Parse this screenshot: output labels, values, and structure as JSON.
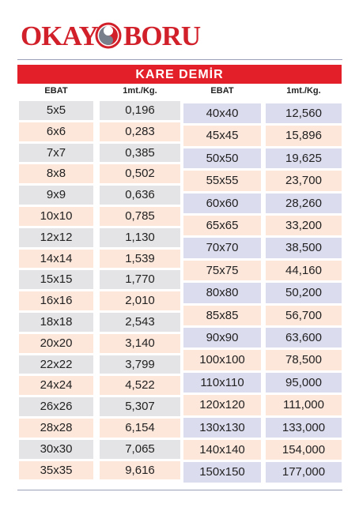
{
  "header": {
    "logo_left": "OKAY",
    "logo_right": "BORU"
  },
  "table": {
    "title": "KARE DEMİR",
    "columns": [
      "EBAT",
      "1mt./Kg.",
      "EBAT",
      "1mt./Kg."
    ],
    "left_rows": [
      [
        "5x5",
        "0,196"
      ],
      [
        "6x6",
        "0,283"
      ],
      [
        "7x7",
        "0,385"
      ],
      [
        "8x8",
        "0,502"
      ],
      [
        "9x9",
        "0,636"
      ],
      [
        "10x10",
        "0,785"
      ],
      [
        "12x12",
        "1,130"
      ],
      [
        "14x14",
        "1,539"
      ],
      [
        "15x15",
        "1,770"
      ],
      [
        "16x16",
        "2,010"
      ],
      [
        "18x18",
        "2,543"
      ],
      [
        "20x20",
        "3,140"
      ],
      [
        "22x22",
        "3,799"
      ],
      [
        "24x24",
        "4,522"
      ],
      [
        "26x26",
        "5,307"
      ],
      [
        "28x28",
        "6,154"
      ],
      [
        "30x30",
        "7,065"
      ],
      [
        "35x35",
        "9,616"
      ]
    ],
    "right_rows": [
      [
        "40x40",
        "12,560"
      ],
      [
        "45x45",
        "15,896"
      ],
      [
        "50x50",
        "19,625"
      ],
      [
        "55x55",
        "23,700"
      ],
      [
        "60x60",
        "28,260"
      ],
      [
        "65x65",
        "33,200"
      ],
      [
        "70x70",
        "38,500"
      ],
      [
        "75x75",
        "44,160"
      ],
      [
        "80x80",
        "50,200"
      ],
      [
        "85x85",
        "56,700"
      ],
      [
        "90x90",
        "63,600"
      ],
      [
        "100x100",
        "78,500"
      ],
      [
        "110x110",
        "95,000"
      ],
      [
        "120x120",
        "111,000"
      ],
      [
        "130x130",
        "133,000"
      ],
      [
        "140x140",
        "154,000"
      ],
      [
        "150x150",
        "177,000"
      ]
    ]
  }
}
